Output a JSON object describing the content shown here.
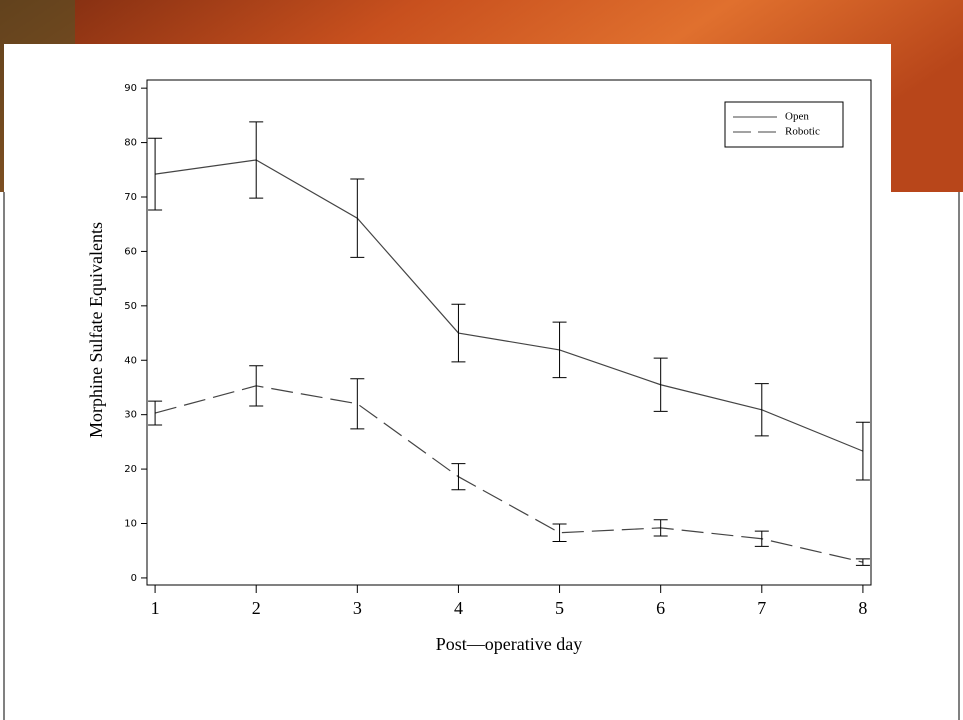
{
  "chart_data": {
    "type": "line",
    "x_label": "Post—operative day",
    "y_label": "Morphine Sulfate Equivalents",
    "x": [
      1,
      2,
      3,
      4,
      5,
      6,
      7,
      8
    ],
    "xlim": [
      0.92,
      8.08
    ],
    "xticks": [
      1,
      2,
      3,
      4,
      5,
      6,
      7,
      8
    ],
    "ylim": [
      -1.3,
      91.5
    ],
    "yticks": [
      0,
      10,
      20,
      30,
      40,
      50,
      60,
      70,
      80,
      90
    ],
    "legend": "top right",
    "series": [
      {
        "name": "Open",
        "color": "#444444",
        "dashed": false,
        "values": [
          74.2,
          76.8,
          66.1,
          45,
          41.9,
          35.5,
          30.9,
          23.3
        ],
        "errors": [
          6.6,
          7,
          7.2,
          5.3,
          5.1,
          4.9,
          4.8,
          5.3
        ]
      },
      {
        "name": "Robotic",
        "color": "#444444",
        "dashed": true,
        "values": [
          30.3,
          35.3,
          32,
          18.6,
          8.3,
          9.2,
          7.2,
          2.9
        ],
        "errors": [
          2.2,
          3.7,
          4.6,
          2.4,
          1.6,
          1.5,
          1.4,
          0.6
        ]
      }
    ]
  }
}
